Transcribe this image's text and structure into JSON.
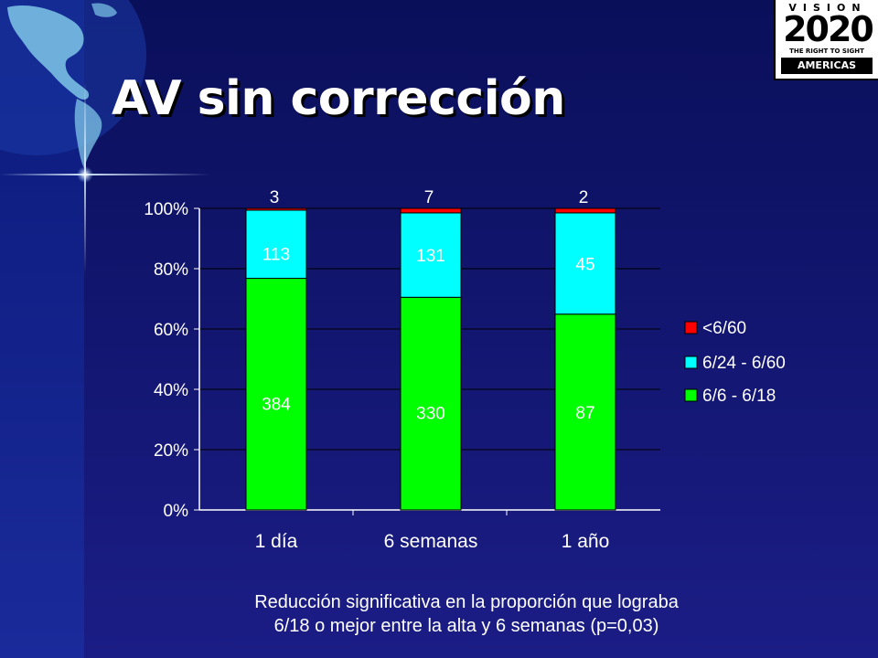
{
  "slide": {
    "title": "AV sin corrección",
    "caption_line1": "Reducción significativa en la proporción que lograba",
    "caption_line2": "6/18 o mejor entre la alta y 6 semanas (p=0,03)"
  },
  "logo": {
    "word": "VISION",
    "year": "2020",
    "tagline": "THE RIGHT TO SIGHT",
    "region": "AMERICAS"
  },
  "colors": {
    "background": "#141878",
    "green": "#00ff00",
    "cyan": "#00ffff",
    "red": "#ff0000",
    "text": "#ffffff"
  },
  "chart_data": {
    "type": "bar",
    "stacked": "percent",
    "categories": [
      "1 día",
      "6 semanas",
      "1 año"
    ],
    "series": [
      {
        "name": "6/6 - 6/18",
        "color": "#00ff00",
        "values": [
          384,
          330,
          87
        ]
      },
      {
        "name": "6/24 - 6/60",
        "color": "#00ffff",
        "values": [
          113,
          131,
          45
        ]
      },
      {
        "name": "<6/60",
        "color": "#ff0000",
        "values": [
          3,
          7,
          2
        ]
      }
    ],
    "yticks": [
      "0%",
      "20%",
      "40%",
      "60%",
      "80%",
      "100%"
    ],
    "ylim": [
      0,
      100
    ],
    "grid": true,
    "legend_position": "right"
  }
}
